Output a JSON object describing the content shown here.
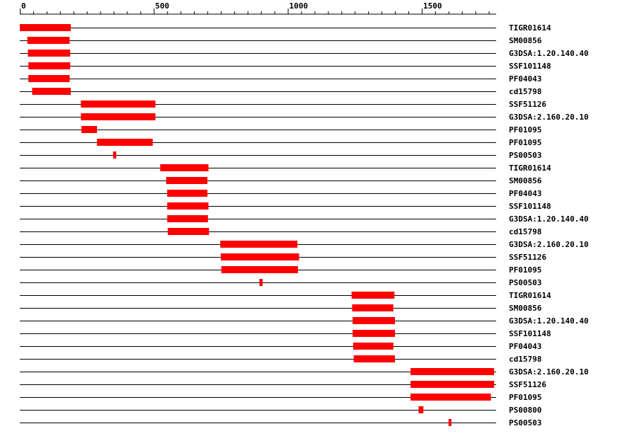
{
  "colors": {
    "feature": "#ff0000",
    "line": "#000000",
    "background": "#ffffff"
  },
  "axis": {
    "min": 0,
    "max": 1780,
    "ticks": [
      0,
      500,
      1000,
      1500
    ],
    "tick_labels": [
      "0",
      "500",
      "1000",
      "1500"
    ],
    "minor_step": 50
  },
  "tracks": [
    {
      "label": "TIGR01614",
      "features": [
        [
          0,
          190
        ]
      ]
    },
    {
      "label": "SM00856",
      "features": [
        [
          28,
          186
        ]
      ]
    },
    {
      "label": "G3DSA:1.20.140.40",
      "features": [
        [
          30,
          188
        ]
      ]
    },
    {
      "label": "SSF101148",
      "features": [
        [
          32,
          188
        ]
      ]
    },
    {
      "label": "PF04043",
      "features": [
        [
          32,
          186
        ]
      ]
    },
    {
      "label": "cd15798",
      "features": [
        [
          46,
          190
        ]
      ]
    },
    {
      "label": "SSF51126",
      "features": [
        [
          228,
          506
        ]
      ]
    },
    {
      "label": "G3DSA:2.160.20.10",
      "features": [
        [
          228,
          506
        ]
      ]
    },
    {
      "label": "PF01095",
      "features": [
        [
          230,
          288
        ]
      ]
    },
    {
      "label": "PF01095",
      "features": [
        [
          288,
          496
        ]
      ]
    },
    {
      "label": "PS00503",
      "features": [
        [
          348,
          360
        ]
      ]
    },
    {
      "label": "TIGR01614",
      "features": [
        [
          524,
          704
        ]
      ]
    },
    {
      "label": "SM00856",
      "features": [
        [
          546,
          700
        ]
      ]
    },
    {
      "label": "PF04043",
      "features": [
        [
          550,
          700
        ]
      ]
    },
    {
      "label": "SSF101148",
      "features": [
        [
          550,
          704
        ]
      ]
    },
    {
      "label": "G3DSA:1.20.140.40",
      "features": [
        [
          550,
          702
        ]
      ]
    },
    {
      "label": "cd15798",
      "features": [
        [
          552,
          706
        ]
      ]
    },
    {
      "label": "G3DSA:2.160.20.10",
      "features": [
        [
          748,
          1036
        ]
      ]
    },
    {
      "label": "SSF51126",
      "features": [
        [
          750,
          1042
        ]
      ]
    },
    {
      "label": "PF01095",
      "features": [
        [
          752,
          1038
        ]
      ]
    },
    {
      "label": "PS00503",
      "features": [
        [
          894,
          906
        ]
      ]
    },
    {
      "label": "TIGR01614",
      "features": [
        [
          1238,
          1398
        ]
      ]
    },
    {
      "label": "SM00856",
      "features": [
        [
          1240,
          1394
        ]
      ]
    },
    {
      "label": "G3DSA:1.20.140.40",
      "features": [
        [
          1242,
          1400
        ]
      ]
    },
    {
      "label": "SSF101148",
      "features": [
        [
          1242,
          1400
        ]
      ]
    },
    {
      "label": "PF04043",
      "features": [
        [
          1244,
          1394
        ]
      ]
    },
    {
      "label": "cd15798",
      "features": [
        [
          1246,
          1400
        ]
      ]
    },
    {
      "label": "G3DSA:2.160.20.10",
      "features": [
        [
          1458,
          1770
        ]
      ]
    },
    {
      "label": "SSF51126",
      "features": [
        [
          1458,
          1770
        ]
      ]
    },
    {
      "label": "PF01095",
      "features": [
        [
          1458,
          1758
        ]
      ]
    },
    {
      "label": "PS00800",
      "features": [
        [
          1488,
          1506
        ]
      ]
    },
    {
      "label": "PS00503",
      "features": [
        [
          1600,
          1610
        ]
      ]
    }
  ]
}
